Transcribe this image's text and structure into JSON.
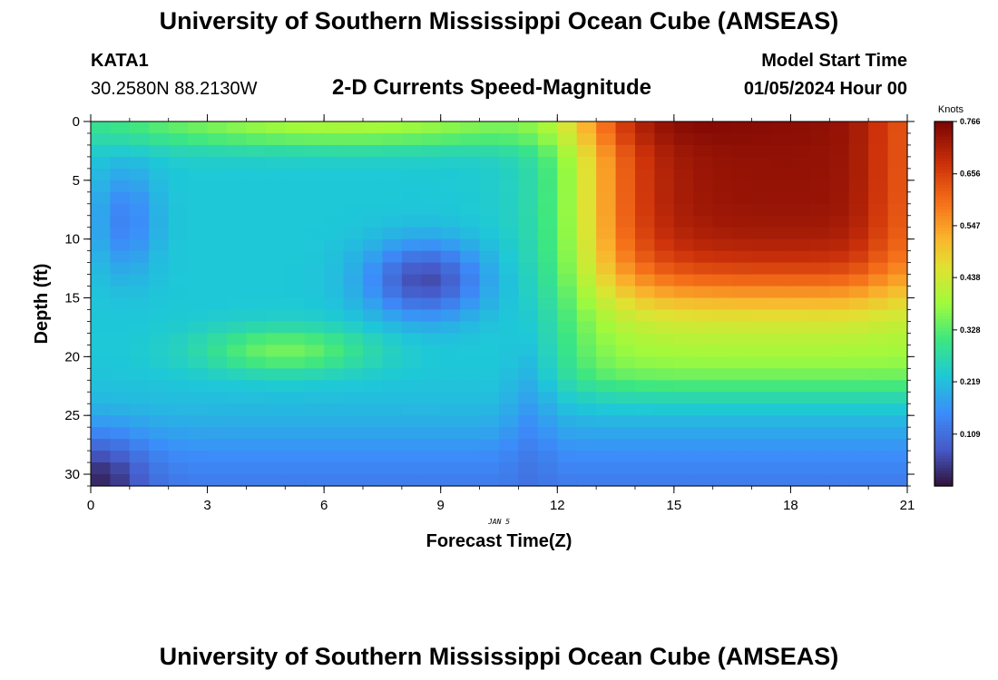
{
  "header": {
    "title": "University of Southern Mississippi Ocean Cube (AMSEAS)",
    "station": "KATA1",
    "coords": "30.2580N  88.2130W",
    "subtitle": "2-D Currents Speed-Magnitude",
    "model_start_label": "Model Start Time",
    "model_start_value": "01/05/2024 Hour 00"
  },
  "footer": {
    "title": "University of Southern Mississippi Ocean Cube (AMSEAS)"
  },
  "chart_data": {
    "type": "heatmap",
    "title": "2-D Currents Speed-Magnitude",
    "xlabel": "Forecast Time(Z)",
    "ylabel": "Depth (ft)",
    "date_label": "JAN 5",
    "x_ticks": [
      "0",
      "3",
      "6",
      "9",
      "12",
      "15",
      "18",
      "21"
    ],
    "y_ticks": [
      "0",
      "5",
      "10",
      "15",
      "20",
      "25",
      "30"
    ],
    "xlim": [
      0,
      21
    ],
    "ylim": [
      31,
      0
    ],
    "colorbar": {
      "label": "Knots",
      "min": 0,
      "max": 0.766,
      "ticks": [
        "0.766",
        "0.656",
        "0.547",
        "0.438",
        "0.328",
        "0.219",
        "0.109"
      ],
      "tick_values": [
        0.766,
        0.656,
        0.547,
        0.438,
        0.328,
        0.219,
        0.109
      ]
    },
    "field": {
      "description": "Approximate current speed (knots) over time 0-21 h and depth 0-31 ft",
      "features": [
        {
          "name": "surface-max",
          "t": 16.5,
          "d": 1.5,
          "peak_knots": 0.76
        },
        {
          "name": "shallow-min",
          "t": 8.5,
          "d": 13.5,
          "min_knots": 0.06
        },
        {
          "name": "mid-max",
          "t": 5.0,
          "d": 19.5,
          "peak_knots": 0.33
        },
        {
          "name": "bottom-min",
          "t": 0.5,
          "d": 30.5,
          "min_knots": 0.02
        }
      ]
    }
  }
}
